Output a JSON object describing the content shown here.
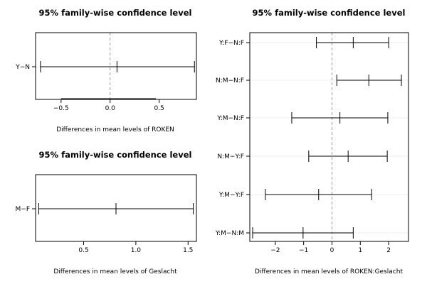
{
  "chart_data": [
    {
      "type": "interval",
      "title": "95% family-wise confidence level",
      "xlabel": "Differences in mean levels of ROKEN",
      "xlim": [
        -0.76,
        0.88
      ],
      "xticks": [
        -0.5,
        0.0,
        0.5
      ],
      "xtick_labels": [
        "−0.5",
        "0.0",
        "0.5"
      ],
      "comparisons": [
        {
          "label": "Y−N",
          "diff": 0.07,
          "lwr": -0.71,
          "upr": 0.86
        }
      ]
    },
    {
      "type": "interval",
      "title": "95% family-wise confidence level",
      "xlabel": "Differences in mean levels of Geslacht",
      "xlim": [
        0.04,
        1.58
      ],
      "xticks": [
        0.5,
        1.0,
        1.5
      ],
      "xtick_labels": [
        "0.5",
        "1.0",
        "1.5"
      ],
      "comparisons": [
        {
          "label": "M−F",
          "diff": 0.81,
          "lwr": 0.07,
          "upr": 1.55
        }
      ]
    },
    {
      "type": "interval",
      "title": "95% family-wise confidence level",
      "xlabel": "Differences in mean levels of ROKEN:Geslacht",
      "xlim": [
        -2.9,
        2.7
      ],
      "xticks": [
        -2,
        -1,
        0,
        1,
        2
      ],
      "xtick_labels": [
        "−2",
        "−1",
        "0",
        "1",
        "2"
      ],
      "comparisons": [
        {
          "label": "Y:F−N:F",
          "diff": 0.75,
          "lwr": -0.55,
          "upr": 2.0
        },
        {
          "label": "N:M−N:F",
          "diff": 1.3,
          "lwr": 0.17,
          "upr": 2.45
        },
        {
          "label": "Y:M−N:F",
          "diff": 0.28,
          "lwr": -1.42,
          "upr": 1.97
        },
        {
          "label": "N:M−Y:F",
          "diff": 0.57,
          "lwr": -0.82,
          "upr": 1.95
        },
        {
          "label": "Y:M−Y:F",
          "diff": -0.47,
          "lwr": -2.35,
          "upr": 1.4
        },
        {
          "label": "Y:M−N:M",
          "diff": -1.02,
          "lwr": -2.8,
          "upr": 0.75
        }
      ]
    }
  ]
}
